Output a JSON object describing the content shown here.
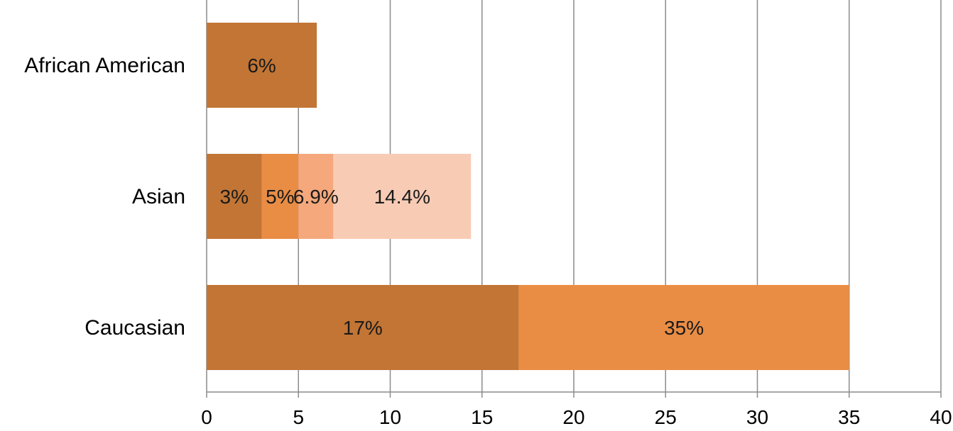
{
  "chart_data": {
    "type": "bar",
    "orientation": "horizontal",
    "stacking": "overlapping-cumulative",
    "categories": [
      "African American",
      "Asian",
      "Caucasian"
    ],
    "bars": [
      {
        "category": "African American",
        "segments": [
          {
            "value": 6,
            "label": "6%",
            "color": "#c27535"
          }
        ]
      },
      {
        "category": "Asian",
        "segments": [
          {
            "value": 3,
            "label": "3%",
            "color": "#c27535"
          },
          {
            "value": 5,
            "label": "5%",
            "color": "#e98d45"
          },
          {
            "value": 6.9,
            "label": "6.9%",
            "color": "#f4a87c"
          },
          {
            "value": 14.4,
            "label": "14.4%",
            "color": "#f8cbb5"
          }
        ]
      },
      {
        "category": "Caucasian",
        "segments": [
          {
            "value": 17,
            "label": "17%",
            "color": "#c27535"
          },
          {
            "value": 35,
            "label": "35%",
            "color": "#e98d45"
          }
        ]
      }
    ],
    "xlim": [
      0,
      40
    ],
    "xticks": [
      0,
      5,
      10,
      15,
      20,
      25,
      30,
      35,
      40
    ],
    "grid": true,
    "legend": "none",
    "title": "",
    "xlabel": "",
    "ylabel": ""
  }
}
